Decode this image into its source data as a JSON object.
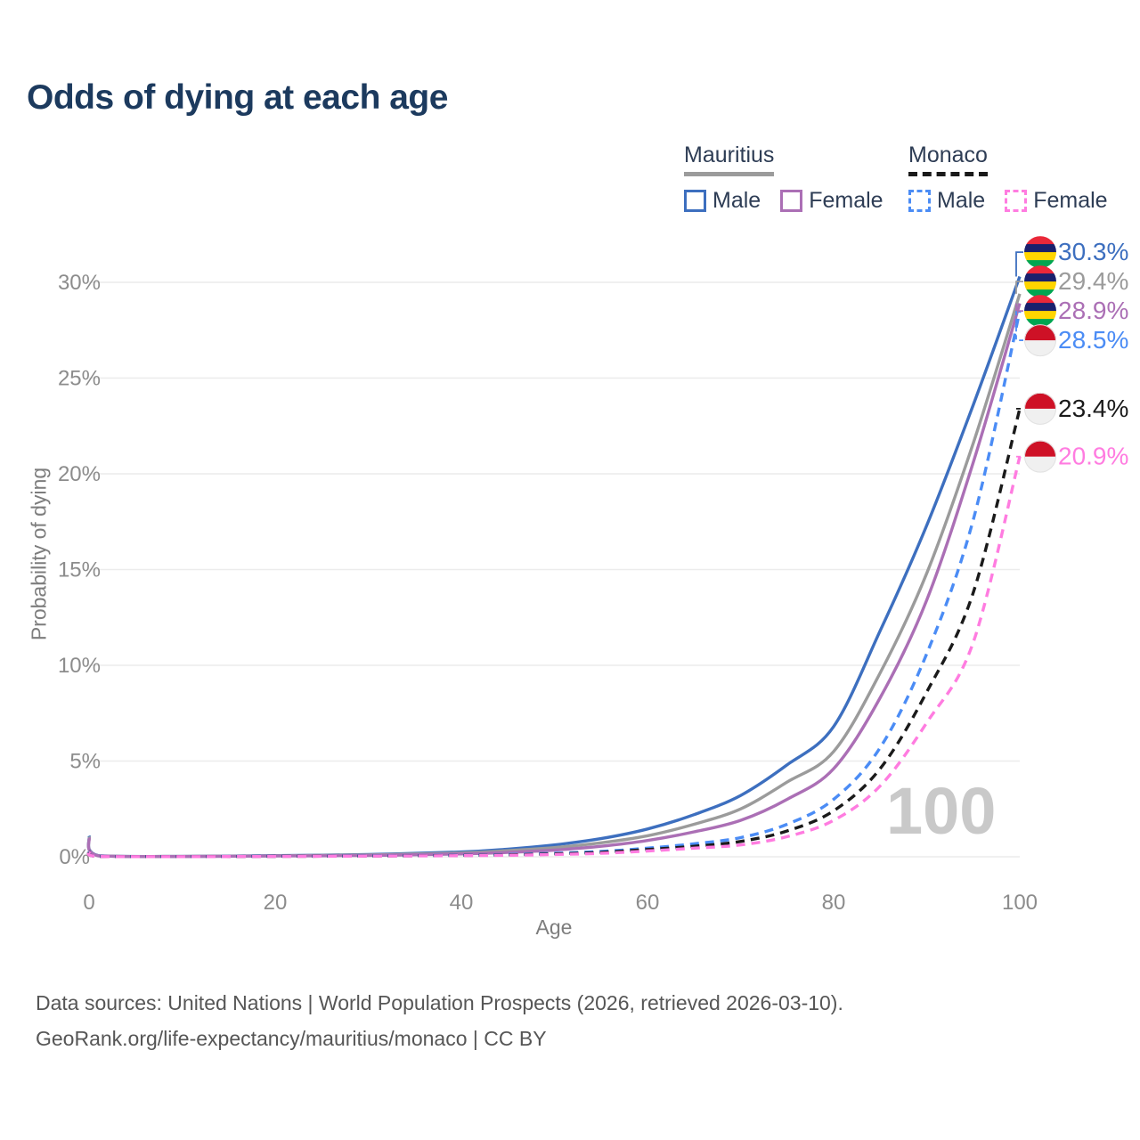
{
  "page": {
    "title": "Odds of dying at each age"
  },
  "legend": {
    "groups": [
      {
        "label": "Mauritius",
        "line_style": "solid",
        "underline_color": "#9b9b9b",
        "items": [
          {
            "label": "Male",
            "color": "#3d6fbf"
          },
          {
            "label": "Female",
            "color": "#ab6fb5"
          }
        ]
      },
      {
        "label": "Monaco",
        "line_style": "dashed",
        "underline_color": "#1a1a1a",
        "items": [
          {
            "label": "Male",
            "color": "#4b8cf5"
          },
          {
            "label": "Female",
            "color": "#ff7ce0"
          }
        ]
      }
    ]
  },
  "chart_data": {
    "type": "line",
    "title": "Odds of dying at each age",
    "xlabel": "Age",
    "ylabel": "Probability of dying",
    "xlim": [
      0,
      100
    ],
    "ylim": [
      0,
      31.5
    ],
    "x_ticks": [
      0,
      20,
      40,
      60,
      80,
      100
    ],
    "y_ticks": [
      "0%",
      "5%",
      "10%",
      "15%",
      "20%",
      "25%",
      "30%"
    ],
    "grid": "horizontal",
    "watermark": "100",
    "x": [
      0,
      1,
      10,
      20,
      30,
      40,
      45,
      50,
      55,
      60,
      65,
      70,
      75,
      80,
      85,
      90,
      95,
      100
    ],
    "series": [
      {
        "name": "Mauritius Male",
        "flag": "mauritius",
        "dash": "solid",
        "color": "#3d6fbf",
        "end_label": "30.3%",
        "values": [
          1.1,
          0.06,
          0.02,
          0.06,
          0.12,
          0.25,
          0.4,
          0.62,
          0.95,
          1.45,
          2.2,
          3.2,
          4.8,
          6.8,
          11.8,
          17.3,
          23.6,
          30.3
        ]
      },
      {
        "name": "Mauritius Both sexes",
        "flag": "mauritius",
        "dash": "solid",
        "color": "#9b9b9b",
        "end_label": "29.4%",
        "values": [
          1.05,
          0.05,
          0.02,
          0.05,
          0.1,
          0.2,
          0.32,
          0.48,
          0.73,
          1.1,
          1.7,
          2.5,
          3.9,
          5.5,
          9.6,
          14.8,
          21.6,
          29.4
        ]
      },
      {
        "name": "Mauritius Female",
        "flag": "mauritius",
        "dash": "solid",
        "color": "#ab6fb5",
        "end_label": "28.9%",
        "values": [
          1.0,
          0.05,
          0.015,
          0.04,
          0.07,
          0.15,
          0.23,
          0.35,
          0.55,
          0.85,
          1.3,
          1.9,
          3.0,
          4.6,
          8.3,
          13.4,
          20.6,
          28.9
        ]
      },
      {
        "name": "Monaco Male",
        "flag": "monaco",
        "dash": "dashed",
        "color": "#4b8cf5",
        "end_label": "28.5%",
        "values": [
          0.3,
          0.02,
          0.01,
          0.03,
          0.05,
          0.08,
          0.12,
          0.18,
          0.28,
          0.45,
          0.68,
          1.0,
          1.7,
          3.0,
          5.7,
          10.6,
          17.6,
          28.5
        ]
      },
      {
        "name": "Monaco Both sexes",
        "flag": "monaco",
        "dash": "dashed",
        "color": "#1a1a1a",
        "end_label": "23.4%",
        "values": [
          0.28,
          0.02,
          0.01,
          0.025,
          0.04,
          0.07,
          0.1,
          0.15,
          0.23,
          0.38,
          0.55,
          0.8,
          1.35,
          2.4,
          4.6,
          8.6,
          13.8,
          23.4
        ]
      },
      {
        "name": "Monaco Female",
        "flag": "monaco",
        "dash": "dashed",
        "color": "#ff7ce0",
        "end_label": "20.9%",
        "values": [
          0.25,
          0.02,
          0.008,
          0.02,
          0.035,
          0.06,
          0.08,
          0.12,
          0.18,
          0.3,
          0.45,
          0.62,
          1.05,
          1.9,
          3.7,
          7.0,
          11.2,
          20.9
        ]
      }
    ],
    "flag_colors": {
      "mauritius": [
        "#ea2839",
        "#1a206d",
        "#ffd500",
        "#00a551"
      ],
      "monaco": [
        "#ce1126",
        "#f0f0f0"
      ]
    },
    "legend_position": "top-right"
  },
  "footer": {
    "line1": "Data sources: United Nations | World Population Prospects (2026, retrieved 2026-03-10).",
    "line2": "GeoRank.org/life-expectancy/mauritius/monaco | CC BY"
  }
}
